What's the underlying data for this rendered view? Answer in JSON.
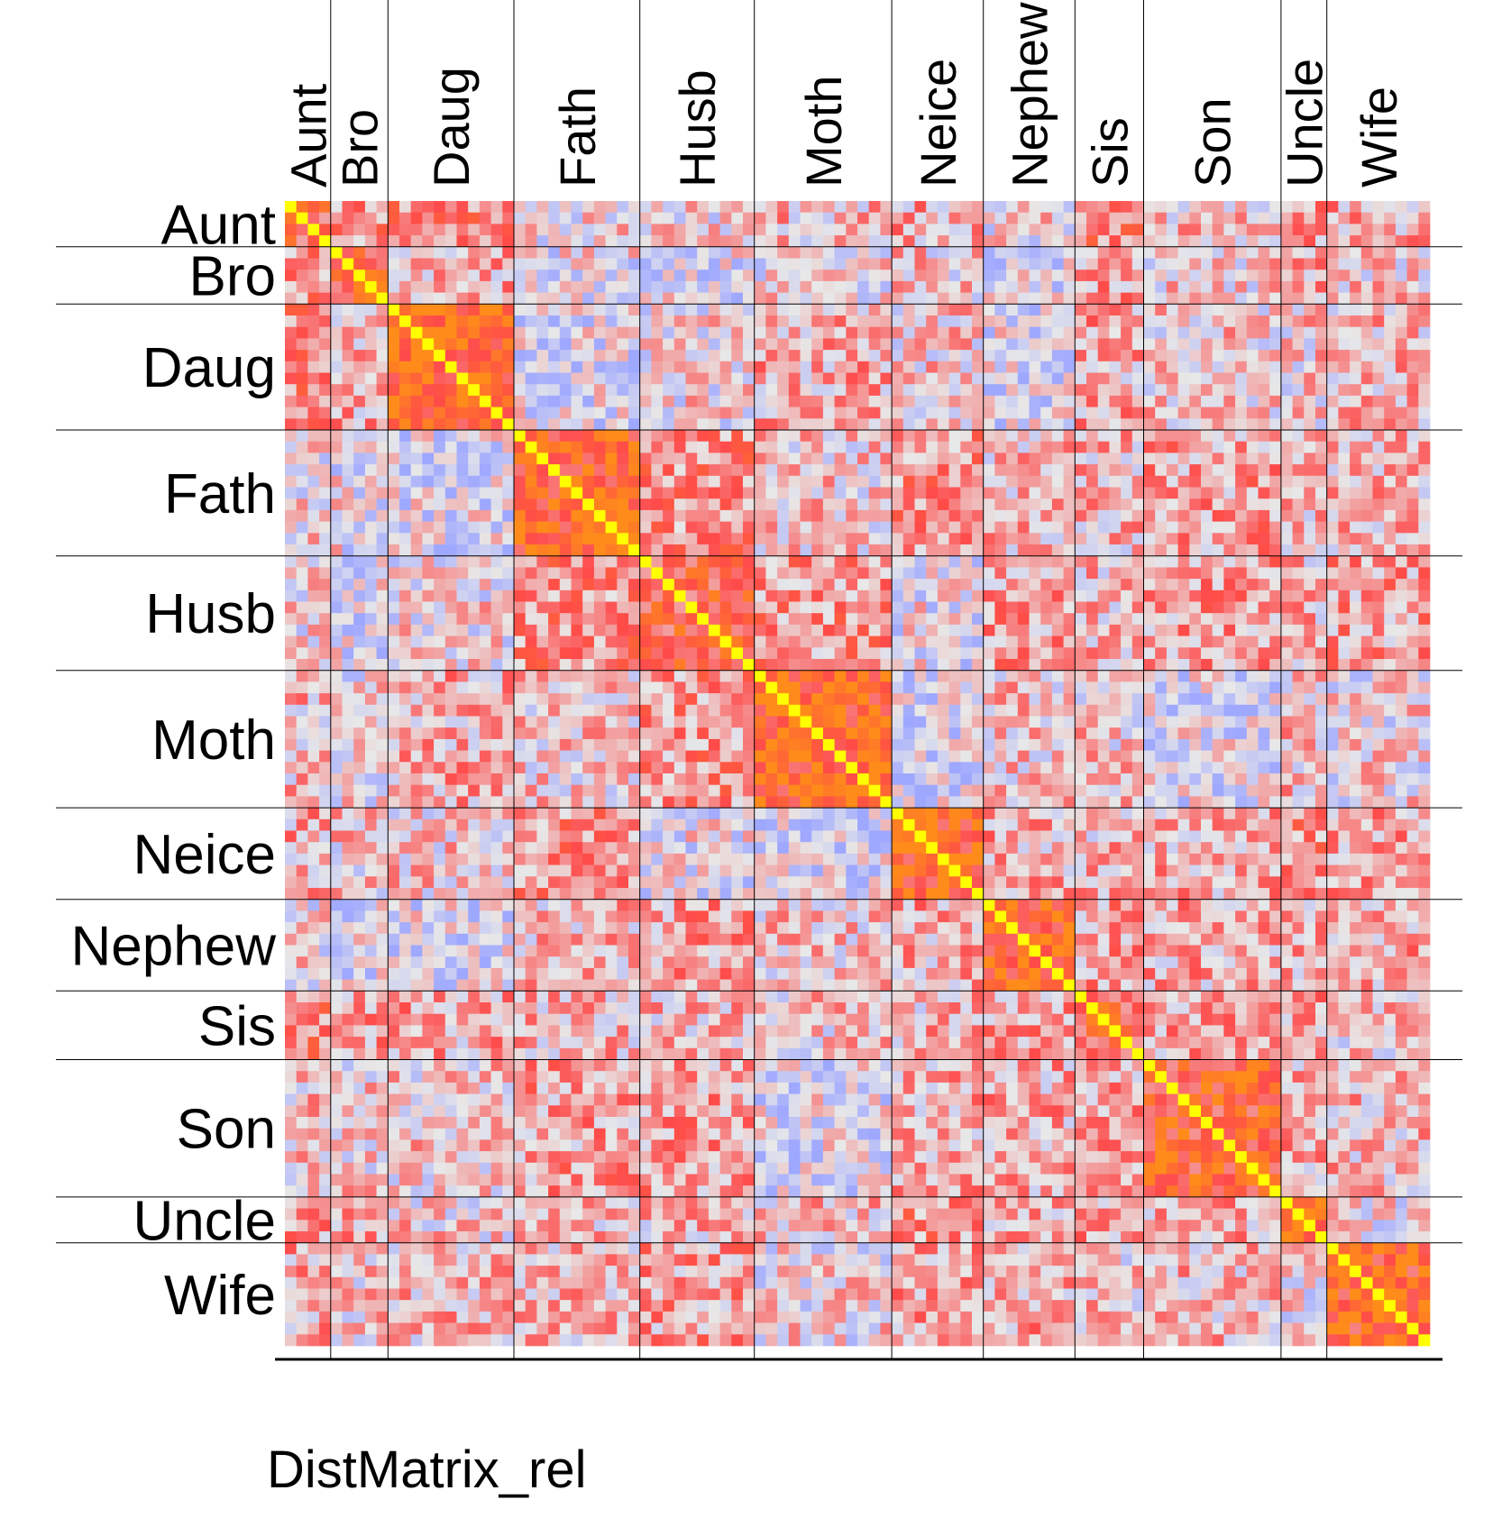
{
  "chart_data": {
    "type": "heatmap",
    "title": "DistMatrix_rel",
    "groups": [
      {
        "label": "Aunt",
        "size": 4
      },
      {
        "label": "Bro",
        "size": 5
      },
      {
        "label": "Daug",
        "size": 11
      },
      {
        "label": "Fath",
        "size": 11
      },
      {
        "label": "Husb",
        "size": 10
      },
      {
        "label": "Moth",
        "size": 12
      },
      {
        "label": "Neice",
        "size": 8
      },
      {
        "label": "Nephew",
        "size": 8
      },
      {
        "label": "Sis",
        "size": 6
      },
      {
        "label": "Son",
        "size": 12
      },
      {
        "label": "Uncle",
        "size": 4
      },
      {
        "label": "Wife",
        "size": 9
      }
    ],
    "n": 100,
    "value_range": [
      -1,
      1
    ],
    "diagonal_value": 1,
    "block_mean": [
      [
        0.55,
        0.3,
        0.4,
        0.05,
        0.05,
        0.15,
        0.2,
        0.05,
        0.35,
        0.15,
        0.25,
        0.2
      ],
      [
        0.3,
        0.6,
        0.2,
        0.0,
        -0.05,
        0.05,
        0.1,
        -0.05,
        0.25,
        0.1,
        0.2,
        0.1
      ],
      [
        0.4,
        0.2,
        0.75,
        -0.05,
        0.05,
        0.2,
        0.1,
        -0.05,
        0.2,
        0.1,
        0.1,
        0.15
      ],
      [
        0.05,
        0.0,
        -0.05,
        0.75,
        0.35,
        0.1,
        0.3,
        0.15,
        0.15,
        0.25,
        0.15,
        0.15
      ],
      [
        0.05,
        -0.05,
        0.05,
        0.35,
        0.6,
        0.3,
        0.0,
        0.25,
        0.15,
        0.25,
        0.15,
        0.25
      ],
      [
        0.15,
        0.05,
        0.2,
        0.1,
        0.3,
        0.75,
        -0.1,
        0.1,
        0.1,
        -0.05,
        0.15,
        0.05
      ],
      [
        0.2,
        0.1,
        0.1,
        0.3,
        0.0,
        -0.1,
        0.75,
        0.2,
        0.15,
        0.2,
        0.3,
        0.25
      ],
      [
        0.05,
        -0.05,
        -0.05,
        0.15,
        0.25,
        0.1,
        0.2,
        0.75,
        0.25,
        0.2,
        0.2,
        0.2
      ],
      [
        0.35,
        0.25,
        0.2,
        0.15,
        0.15,
        0.1,
        0.15,
        0.25,
        0.6,
        0.2,
        0.2,
        0.1
      ],
      [
        0.15,
        0.1,
        0.1,
        0.25,
        0.25,
        -0.05,
        0.2,
        0.2,
        0.2,
        0.65,
        0.2,
        0.15
      ],
      [
        0.25,
        0.2,
        0.1,
        0.15,
        0.15,
        0.15,
        0.3,
        0.2,
        0.2,
        0.2,
        0.7,
        0.05
      ],
      [
        0.2,
        0.1,
        0.15,
        0.15,
        0.25,
        0.05,
        0.25,
        0.2,
        0.1,
        0.15,
        0.05,
        0.7
      ]
    ],
    "colorscale": {
      "negative": "#9fa8ff",
      "zero": "#e8e8e8",
      "positive": "#ff4a4a",
      "strong": "#ff8c1a",
      "max": "#ffff00"
    },
    "grid": true,
    "legend": "none"
  }
}
